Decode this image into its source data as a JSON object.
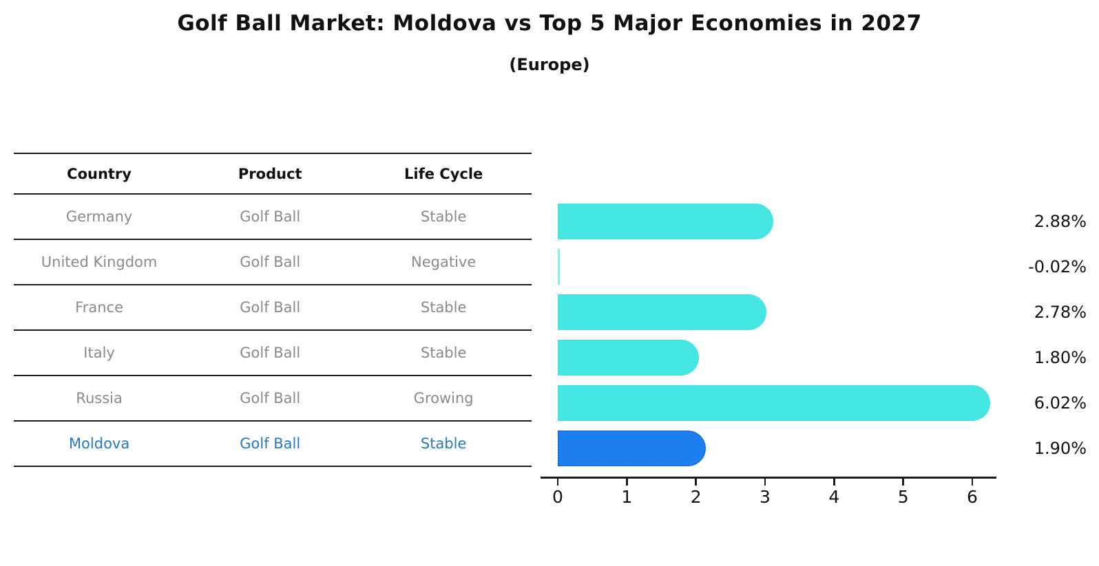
{
  "title": "Golf Ball Market: Moldova vs Top 5 Major Economies in 2027",
  "subtitle": "(Europe)",
  "table": {
    "headers": {
      "country": "Country",
      "product": "Product",
      "life_cycle": "Life Cycle"
    },
    "rows": [
      {
        "country": "Germany",
        "product": "Golf Ball",
        "life_cycle": "Stable"
      },
      {
        "country": "United Kingdom",
        "product": "Golf Ball",
        "life_cycle": "Negative"
      },
      {
        "country": "France",
        "product": "Golf Ball",
        "life_cycle": "Stable"
      },
      {
        "country": "Italy",
        "product": "Golf Ball",
        "life_cycle": "Stable"
      },
      {
        "country": "Russia",
        "product": "Golf Ball",
        "life_cycle": "Growing"
      },
      {
        "country": "Moldova",
        "product": "Golf Ball",
        "life_cycle": "Stable"
      }
    ],
    "highlight_row_index": 5
  },
  "chart_data": {
    "type": "bar",
    "orientation": "horizontal",
    "categories": [
      "Germany",
      "United Kingdom",
      "France",
      "Italy",
      "Russia",
      "Moldova"
    ],
    "values": [
      2.88,
      -0.02,
      2.78,
      1.8,
      6.02,
      1.9
    ],
    "value_labels": [
      "2.88%",
      "-0.02%",
      "2.78%",
      "1.80%",
      "6.02%",
      "1.90%"
    ],
    "xticks": [
      0,
      1,
      2,
      3,
      4,
      5,
      6
    ],
    "xlim": [
      0,
      6.6
    ],
    "grid": false,
    "legend": "none",
    "highlight_index": 5,
    "colors": {
      "bar": "#45E6E2",
      "highlight_bar": "#1E80F0",
      "highlight_bar_border": "#1565D8",
      "highlight_text": "#2878BE",
      "table_text": "#8A8A8A",
      "axis": "#1A1A1A"
    }
  }
}
